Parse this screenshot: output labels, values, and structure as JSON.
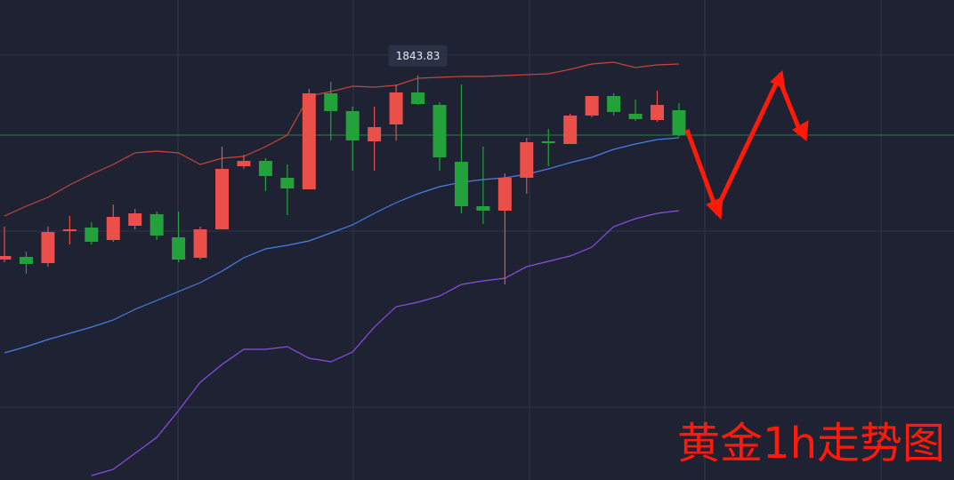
{
  "chart_data": {
    "type": "candlestick",
    "title": "黄金1h走势图",
    "ylim": [
      1798.3,
      1852.3
    ],
    "up_color": "#ea4f4a",
    "down_color": "#23a23c",
    "open": [
      1823.1,
      1823.4,
      1822.7,
      1826.3,
      1826.7,
      1825.3,
      1826.9,
      1828.2,
      1825.6,
      1823.3,
      1826.5,
      1833.6,
      1834.2,
      1832.3,
      1831.0,
      1841.8,
      1839.8,
      1836.4,
      1838.3,
      1841.9,
      1840.5,
      1834.1,
      1829.1,
      1828.6,
      1832.3,
      1836.4,
      1836.1,
      1839.3,
      1841.5,
      1839.5,
      1838.8,
      1839.9
    ],
    "high": [
      1826.8,
      1824.0,
      1826.8,
      1828.0,
      1827.3,
      1829.3,
      1828.8,
      1828.5,
      1828.5,
      1826.8,
      1835.8,
      1834.9,
      1834.5,
      1833.8,
      1842.3,
      1843.1,
      1840.3,
      1840.3,
      1842.8,
      1843.83,
      1840.8,
      1842.8,
      1835.8,
      1832.8,
      1836.8,
      1837.8,
      1839.5,
      1841.5,
      1841.8,
      1841.1,
      1842.1,
      1840.7
    ],
    "low": [
      1822.8,
      1821.5,
      1822.3,
      1824.8,
      1824.8,
      1825.1,
      1826.5,
      1825.3,
      1822.8,
      1823.1,
      1826.5,
      1833.3,
      1830.8,
      1828.1,
      1831.0,
      1836.5,
      1833.1,
      1833.1,
      1836.5,
      1840.5,
      1833.1,
      1828.3,
      1827.1,
      1820.3,
      1830.5,
      1833.6,
      1836.1,
      1839.1,
      1839.3,
      1838.7,
      1838.6,
      1836.9
    ],
    "close": [
      1823.5,
      1822.6,
      1826.2,
      1826.5,
      1825.1,
      1827.9,
      1828.3,
      1825.8,
      1823.1,
      1826.5,
      1833.3,
      1834.2,
      1832.5,
      1831.1,
      1841.8,
      1839.8,
      1836.5,
      1838.0,
      1841.9,
      1840.6,
      1834.6,
      1829.1,
      1828.6,
      1832.3,
      1836.3,
      1836.2,
      1839.3,
      1841.5,
      1839.7,
      1838.9,
      1840.5,
      1837.1
    ],
    "high_label_index": 19,
    "price_line": 1837.1,
    "price_line_color": "#2e7d46",
    "bands": [
      {
        "color": "#c4453b",
        "values": [
          1828.0,
          1829.1,
          1830.1,
          1831.5,
          1832.7,
          1833.8,
          1835.1,
          1835.3,
          1835.1,
          1833.8,
          1834.5,
          1834.7,
          1835.8,
          1837.1,
          1841.5,
          1842.0,
          1842.6,
          1842.5,
          1842.7,
          1843.5,
          1843.6,
          1843.7,
          1843.7,
          1843.8,
          1843.9,
          1844.0,
          1844.5,
          1845.1,
          1845.3,
          1844.7,
          1845.0,
          1845.1
        ]
      },
      {
        "color": "#4a7ee6",
        "values": [
          1812.6,
          1813.3,
          1814.1,
          1814.8,
          1815.5,
          1816.3,
          1817.5,
          1818.5,
          1819.5,
          1820.5,
          1821.8,
          1823.3,
          1824.3,
          1824.7,
          1825.2,
          1826.1,
          1827.0,
          1828.3,
          1829.5,
          1830.5,
          1831.3,
          1831.8,
          1832.1,
          1832.3,
          1832.7,
          1833.3,
          1834.0,
          1834.6,
          1835.5,
          1836.1,
          1836.6,
          1836.8
        ]
      },
      {
        "color": "#8b4fe6",
        "values": [
          null,
          null,
          null,
          null,
          1798.8,
          1799.5,
          1801.3,
          1803.1,
          1806.1,
          1809.3,
          1811.3,
          1813.0,
          1813.0,
          1813.3,
          1812.0,
          1811.6,
          1812.7,
          1815.5,
          1817.8,
          1818.3,
          1819.0,
          1820.3,
          1820.7,
          1821.0,
          1822.3,
          1822.9,
          1823.5,
          1824.5,
          1826.8,
          1827.7,
          1828.3,
          1828.6
        ]
      }
    ]
  }
}
